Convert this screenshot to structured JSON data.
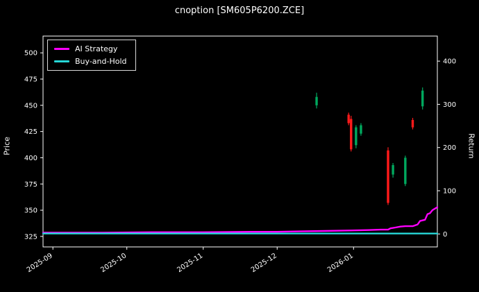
{
  "title": "cnoption [SM605P6200.ZCE]",
  "colors": {
    "background": "#000000",
    "text": "#ffffff",
    "spine": "#ffffff",
    "candle_up": "#00a85e",
    "candle_down": "#ff1a1a",
    "ai_strategy": "#ff00ff",
    "buy_and_hold": "#26d7d7"
  },
  "chart_data": {
    "type": "candlestick",
    "title": "cnoption [SM605P6200.ZCE]",
    "left_axis": {
      "label": "Price",
      "ticks": [
        325,
        350,
        375,
        400,
        425,
        450,
        475,
        500
      ],
      "range": [
        315,
        516
      ]
    },
    "right_axis": {
      "label": "Return",
      "ticks": [
        0,
        100,
        200,
        300,
        400
      ],
      "range": [
        -30,
        458
      ]
    },
    "x_axis": {
      "range": [
        -4,
        156
      ],
      "ticks": [
        {
          "day": 0,
          "label": "2025-09"
        },
        {
          "day": 30,
          "label": "2025-10"
        },
        {
          "day": 61,
          "label": "2025-11"
        },
        {
          "day": 91,
          "label": "2025-12"
        },
        {
          "day": 122,
          "label": "2026-01"
        }
      ]
    },
    "legend": [
      {
        "label": "AI Strategy",
        "color": "#ff00ff"
      },
      {
        "label": "Buy-and-Hold",
        "color": "#26d7d7"
      }
    ],
    "candles": [
      {
        "day": 107,
        "date": "2025-12-17",
        "open": 450,
        "high": 462,
        "low": 447,
        "close": 458
      },
      {
        "day": 120,
        "date": "2025-12-30",
        "open": 441,
        "high": 443,
        "low": 431,
        "close": 433
      },
      {
        "day": 121,
        "date": "2025-12-31",
        "open": 437,
        "high": 440,
        "low": 406,
        "close": 408
      },
      {
        "day": 123,
        "date": "2026-01-02",
        "open": 412,
        "high": 431,
        "low": 409,
        "close": 429
      },
      {
        "day": 125,
        "date": "2026-01-04",
        "open": 423,
        "high": 433,
        "low": 421,
        "close": 431
      },
      {
        "day": 136,
        "date": "2026-01-15",
        "open": 407,
        "high": 410,
        "low": 355,
        "close": 357
      },
      {
        "day": 138,
        "date": "2026-01-17",
        "open": 384,
        "high": 395,
        "low": 381,
        "close": 393
      },
      {
        "day": 143,
        "date": "2026-01-22",
        "open": 375,
        "high": 402,
        "low": 373,
        "close": 400
      },
      {
        "day": 146,
        "date": "2026-01-25",
        "open": 436,
        "high": 438,
        "low": 427,
        "close": 429
      },
      {
        "day": 150,
        "date": "2026-01-29",
        "open": 449,
        "high": 467,
        "low": 446,
        "close": 464
      }
    ],
    "series": [
      {
        "name": "AI Strategy",
        "axis": "return",
        "color": "#ff00ff",
        "points": [
          [
            -4,
            3
          ],
          [
            0,
            3
          ],
          [
            20,
            3
          ],
          [
            40,
            4
          ],
          [
            61,
            4
          ],
          [
            80,
            5
          ],
          [
            91,
            5
          ],
          [
            100,
            6
          ],
          [
            110,
            7
          ],
          [
            120,
            8
          ],
          [
            128,
            9
          ],
          [
            133,
            10
          ],
          [
            136,
            10
          ],
          [
            137,
            13
          ],
          [
            139,
            15
          ],
          [
            141,
            17
          ],
          [
            143,
            18
          ],
          [
            146,
            18
          ],
          [
            147,
            20
          ],
          [
            148,
            22
          ],
          [
            149,
            30
          ],
          [
            151,
            33
          ],
          [
            152,
            46
          ],
          [
            153,
            48
          ],
          [
            154,
            55
          ],
          [
            156,
            62
          ]
        ]
      },
      {
        "name": "Buy-and-Hold",
        "axis": "return",
        "color": "#26d7d7",
        "points": [
          [
            -4,
            1
          ],
          [
            156,
            1
          ]
        ]
      }
    ]
  }
}
